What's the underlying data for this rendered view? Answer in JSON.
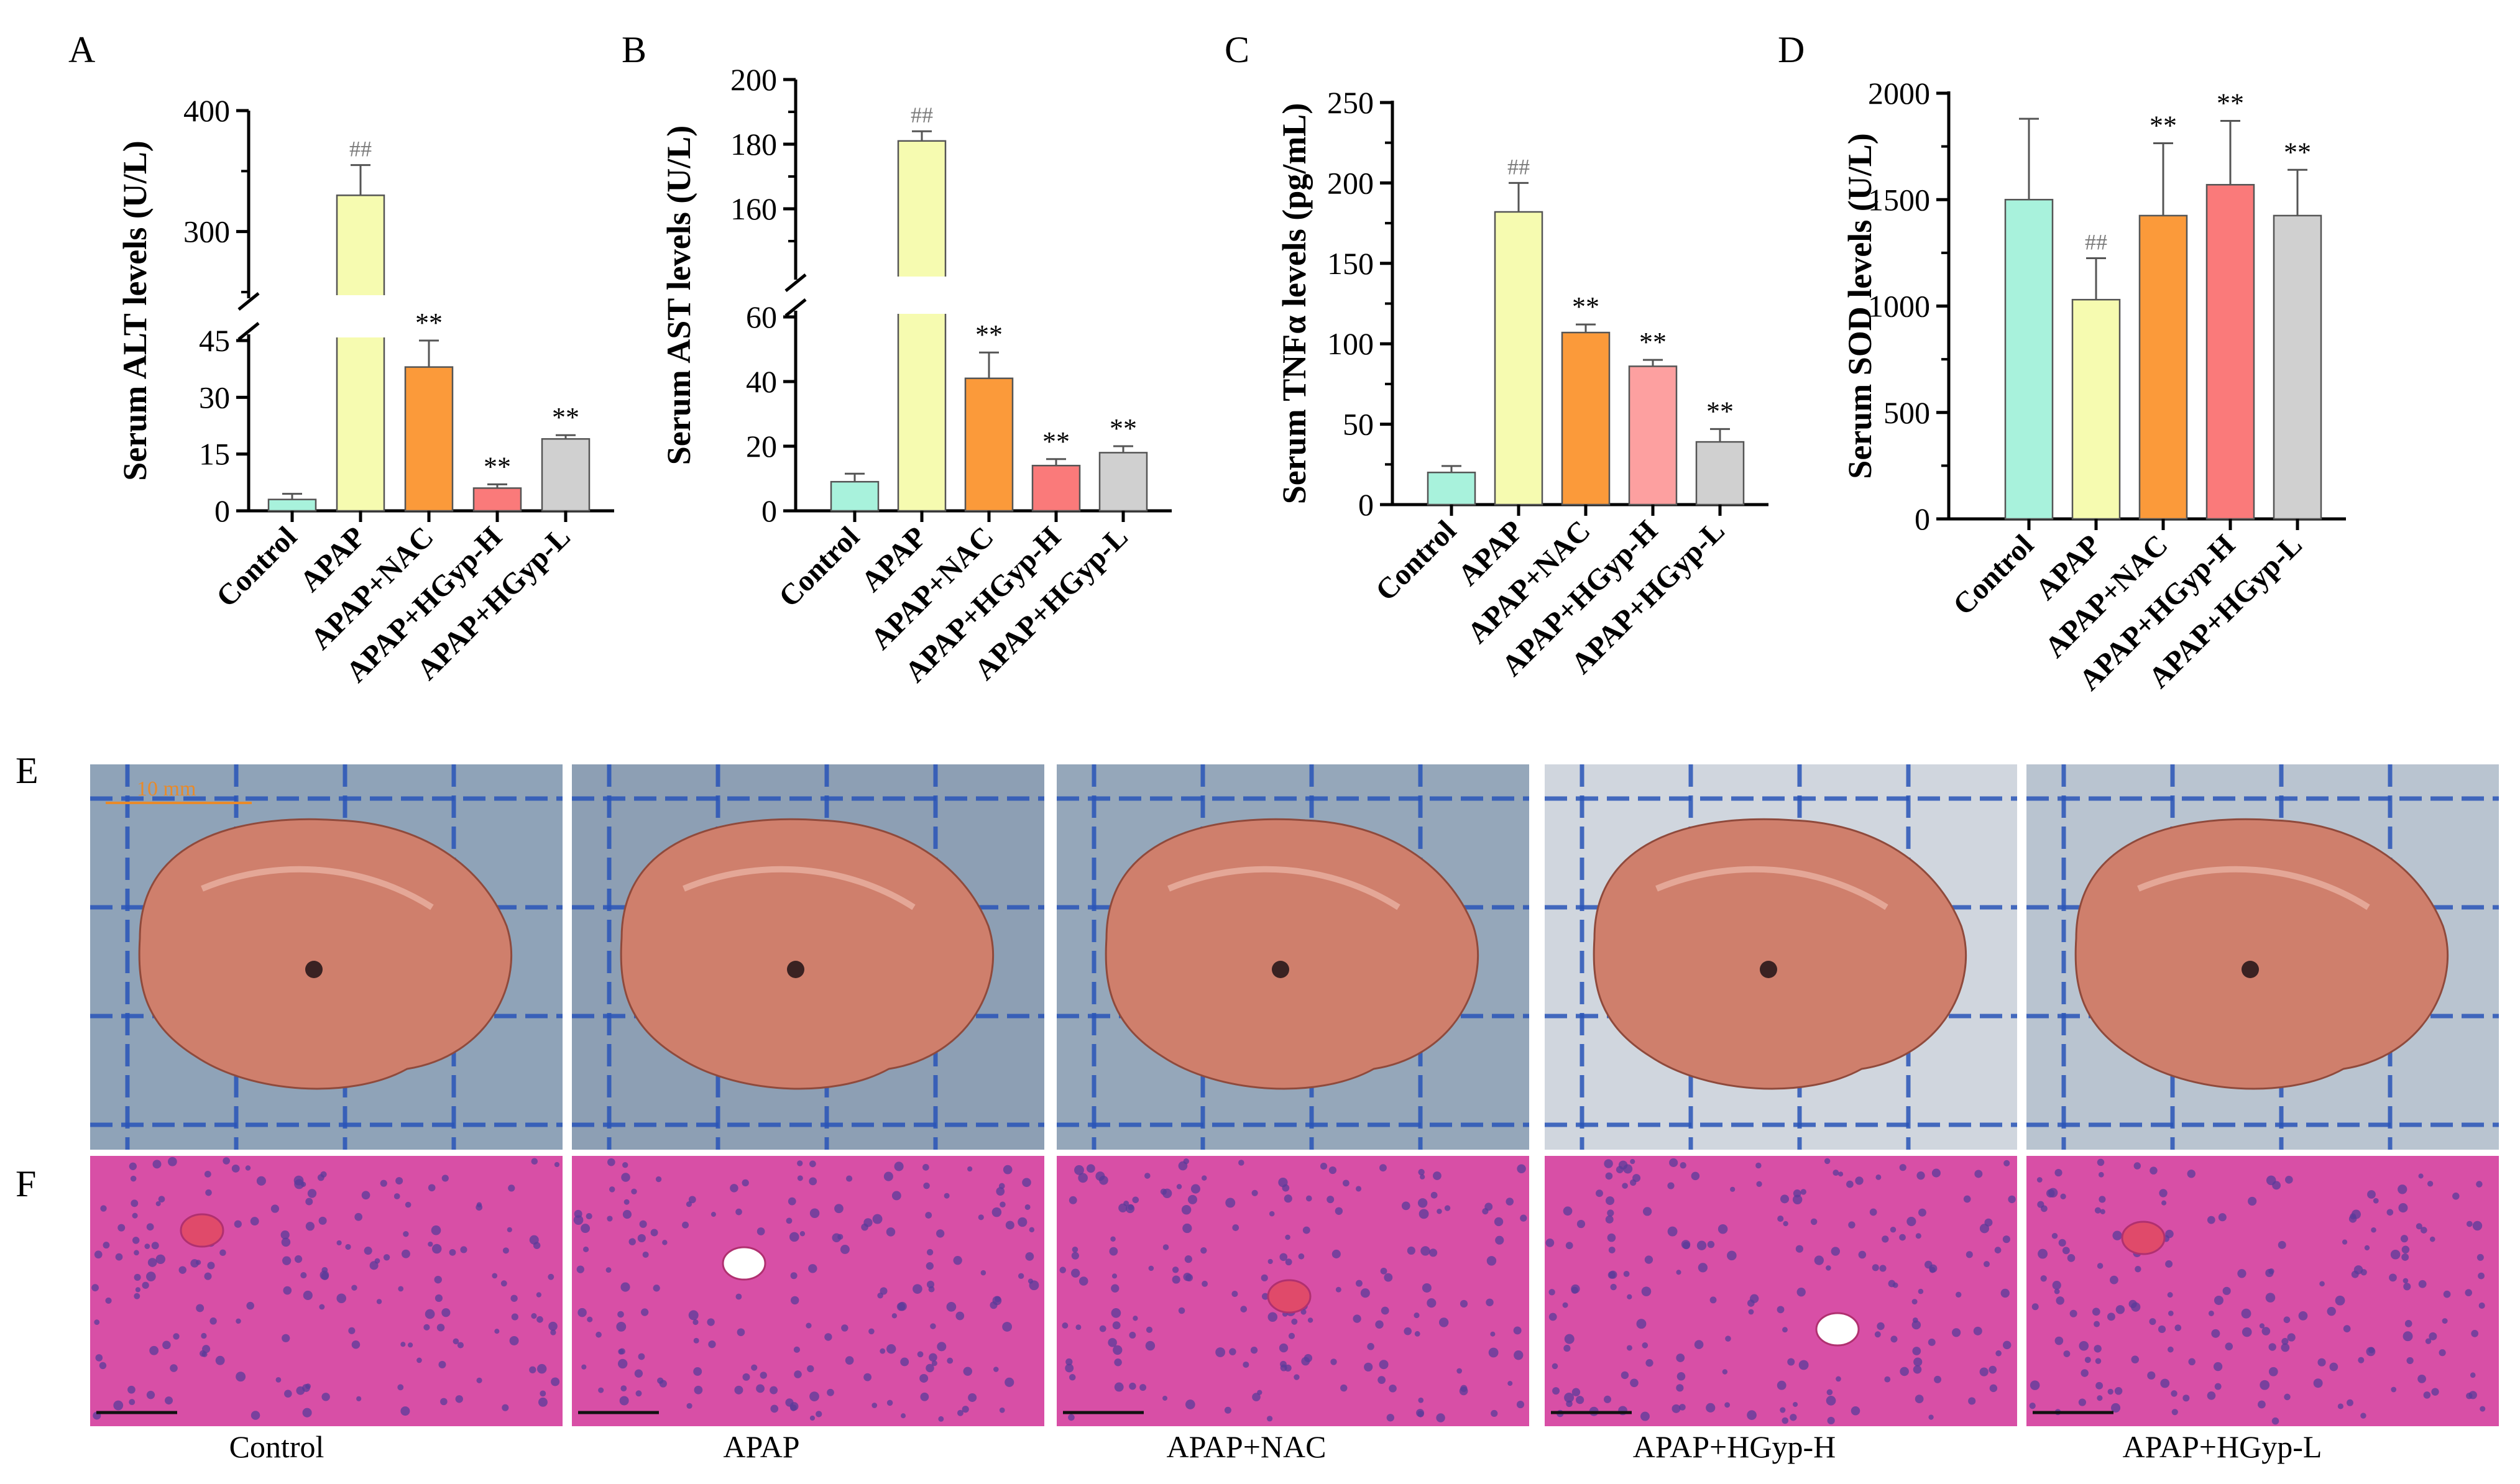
{
  "panel_letters": [
    "A",
    "B",
    "C",
    "D",
    "E",
    "F"
  ],
  "colors": {
    "control": "#a8f2dc",
    "apap": "#f6fbb0",
    "nac": "#fb9a3a",
    "hgyp_h": "#fa7a7a",
    "hgyp_h_c": "#fda0a0",
    "hgyp_l": "#d0d0d0",
    "axis": "#000000",
    "sig_hash": "#7a7a7a"
  },
  "groups": [
    "Control",
    "APAP",
    "APAP+NAC",
    "APAP+HGyp-H",
    "APAP+HGyp-L"
  ],
  "chart_data": [
    {
      "id": "A",
      "type": "bar",
      "ylabel": "Serum ALT levels (U/L)",
      "broken_axis": true,
      "lower_ylim": [
        0,
        45
      ],
      "lower_ticks": [
        "0",
        "15",
        "30",
        "45"
      ],
      "upper_ylim": [
        250,
        400
      ],
      "upper_ticks": [
        "300",
        "400"
      ],
      "categories": [
        "Control",
        "APAP",
        "APAP+NAC",
        "APAP+HGyp-H",
        "APAP+HGyp-L"
      ],
      "values": [
        3,
        330,
        38,
        6,
        19
      ],
      "errors": [
        1.5,
        25,
        7,
        1,
        1
      ],
      "significance": [
        "",
        "##",
        "**",
        "**",
        "**"
      ]
    },
    {
      "id": "B",
      "type": "bar",
      "ylabel": "Serum AST levels (U/L)",
      "broken_axis": true,
      "lower_ylim": [
        0,
        60
      ],
      "lower_ticks": [
        "0",
        "20",
        "40",
        "60"
      ],
      "upper_ylim": [
        140,
        200
      ],
      "upper_ticks": [
        "160",
        "180",
        "200"
      ],
      "categories": [
        "Control",
        "APAP",
        "APAP+NAC",
        "APAP+HGyp-H",
        "APAP+HGyp-L"
      ],
      "values": [
        9,
        181,
        41,
        14,
        18
      ],
      "errors": [
        2.5,
        3,
        8,
        2,
        2
      ],
      "significance": [
        "",
        "##",
        "**",
        "**",
        "**"
      ]
    },
    {
      "id": "C",
      "type": "bar",
      "ylabel": "Serum TNFα levels (pg/mL)",
      "broken_axis": false,
      "ylim": [
        0,
        250
      ],
      "ticks": [
        "0",
        "50",
        "100",
        "150",
        "200",
        "250"
      ],
      "categories": [
        "Control",
        "APAP",
        "APAP+NAC",
        "APAP+HGyp-H",
        "APAP+HGyp-L"
      ],
      "values": [
        20,
        182,
        107,
        86,
        39
      ],
      "errors": [
        4,
        18,
        5,
        4,
        8
      ],
      "significance": [
        "",
        "##",
        "**",
        "**",
        "**"
      ]
    },
    {
      "id": "D",
      "type": "bar",
      "ylabel": "Serum SOD levels (U/L)",
      "broken_axis": false,
      "ylim": [
        0,
        2000
      ],
      "ticks": [
        "0",
        "500",
        "1000",
        "1500",
        "2000"
      ],
      "categories": [
        "Control",
        "APAP",
        "APAP+NAC",
        "APAP+HGyp-H",
        "APAP+HGyp-L"
      ],
      "values": [
        1500,
        1030,
        1425,
        1570,
        1425
      ],
      "errors": [
        380,
        195,
        340,
        300,
        215
      ],
      "significance": [
        "",
        "##",
        "**",
        "**",
        "**"
      ]
    }
  ],
  "photos": {
    "scale_bar_label": "10 mm",
    "row_e_backgrounds": [
      "#8fa3b8",
      "#8d9fb4",
      "#95a7ba",
      "#d0d6de",
      "#b9c4d0"
    ],
    "liver_color": "#cf7f6c",
    "grid_color": "#2a55b8",
    "he_background": "#d84fa6",
    "he_nuclei": "#5a3b9a"
  },
  "captions": [
    "Control",
    "APAP",
    "APAP+NAC",
    "APAP+HGyp-H",
    "APAP+HGyp-L"
  ]
}
